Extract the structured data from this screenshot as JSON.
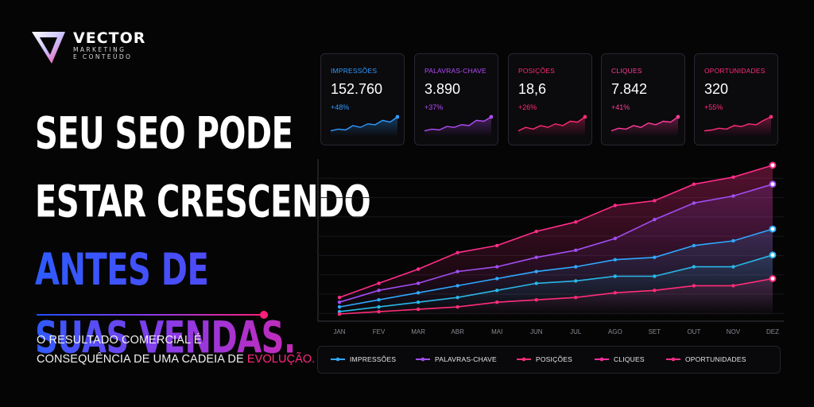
{
  "brand": {
    "name": "VECTOR",
    "tagline_1": "MARKETING",
    "tagline_2": "E CONTEÚDO"
  },
  "headline": {
    "line1": "SEU SEO PODE",
    "line2": "ESTAR CRESCENDO",
    "line3": "ANTES DE",
    "line4": "SUAS VENDAS."
  },
  "subtitle": {
    "line1": "O RESULTADO COMERCIAL É",
    "line2_prefix": "CONSEQUÊNCIA DE UMA CADEIA DE ",
    "line2_accent": "EVOLUÇÃO."
  },
  "colors": {
    "impressoes": "#2fa8ff",
    "palavras": "#a14df2",
    "posicoes": "#ff2d78",
    "cliques": "#ff2fa0",
    "oportunidades": "#ff2d88",
    "accent": "#ff2a7f"
  },
  "cards": [
    {
      "label": "IMPRESSÕES",
      "value": "152.760",
      "change": "+48%",
      "color": "#2f9bff",
      "spark": [
        2,
        3,
        2.5,
        5,
        4,
        6,
        5.5,
        8,
        7,
        10
      ]
    },
    {
      "label": "PALAVRAS-CHAVE",
      "value": "3.890",
      "change": "+37%",
      "color": "#b04cf5",
      "spark": [
        2,
        3,
        2.5,
        4.5,
        4,
        5.5,
        5,
        8,
        7.5,
        10
      ]
    },
    {
      "label": "POSIÇÕES",
      "value": "18,6",
      "change": "+26%",
      "color": "#ff2d6f",
      "spark": [
        2,
        4,
        3,
        5,
        4,
        6,
        5,
        7.5,
        7,
        10
      ]
    },
    {
      "label": "CLIQUES",
      "value": "7.842",
      "change": "+41%",
      "color": "#ff3d9a",
      "spark": [
        2,
        3.5,
        3,
        5,
        4,
        6.5,
        5.5,
        7.5,
        7,
        10
      ]
    },
    {
      "label": "OPORTUNIDADES",
      "value": "320",
      "change": "+55%",
      "color": "#ff2d7a",
      "spark": [
        2,
        2.5,
        3.5,
        3,
        5,
        4.5,
        6,
        5.5,
        8,
        10
      ]
    }
  ],
  "chart_data": {
    "type": "line",
    "categories": [
      "JAN",
      "FEV",
      "MAR",
      "ABR",
      "MAI",
      "JUN",
      "JUL",
      "AGO",
      "SET",
      "OUT",
      "NOV",
      "DEZ"
    ],
    "ylim": [
      0,
      100
    ],
    "grid": true,
    "legend": "bottom",
    "series": [
      {
        "name": "OPORTUNIDADES",
        "values": [
          8,
          14,
          20,
          27,
          30,
          36,
          40,
          47,
          49,
          56,
          59,
          64
        ]
      },
      {
        "name": "CLIQUES",
        "values": [
          6,
          11,
          14,
          19,
          21,
          25,
          28,
          33,
          41,
          48,
          51,
          56
        ]
      },
      {
        "name": "PALAVRAS-CHAVE",
        "values": [
          4,
          7,
          10,
          13,
          16,
          19,
          21,
          24,
          25,
          30,
          32,
          37
        ]
      },
      {
        "name": "IMPRESSÕES",
        "values": [
          2,
          4,
          6,
          8,
          11,
          14,
          15,
          17,
          17,
          21,
          21,
          26
        ]
      },
      {
        "name": "POSIÇÕES",
        "values": [
          1,
          2,
          3,
          4,
          6,
          7,
          8,
          10,
          11,
          13,
          13,
          16
        ]
      }
    ]
  },
  "legend": {
    "items": [
      "IMPRESSÕES",
      "PALAVRAS-CHAVE",
      "POSIÇÕES",
      "CLIQUES",
      "OPORTUNIDADES"
    ]
  }
}
